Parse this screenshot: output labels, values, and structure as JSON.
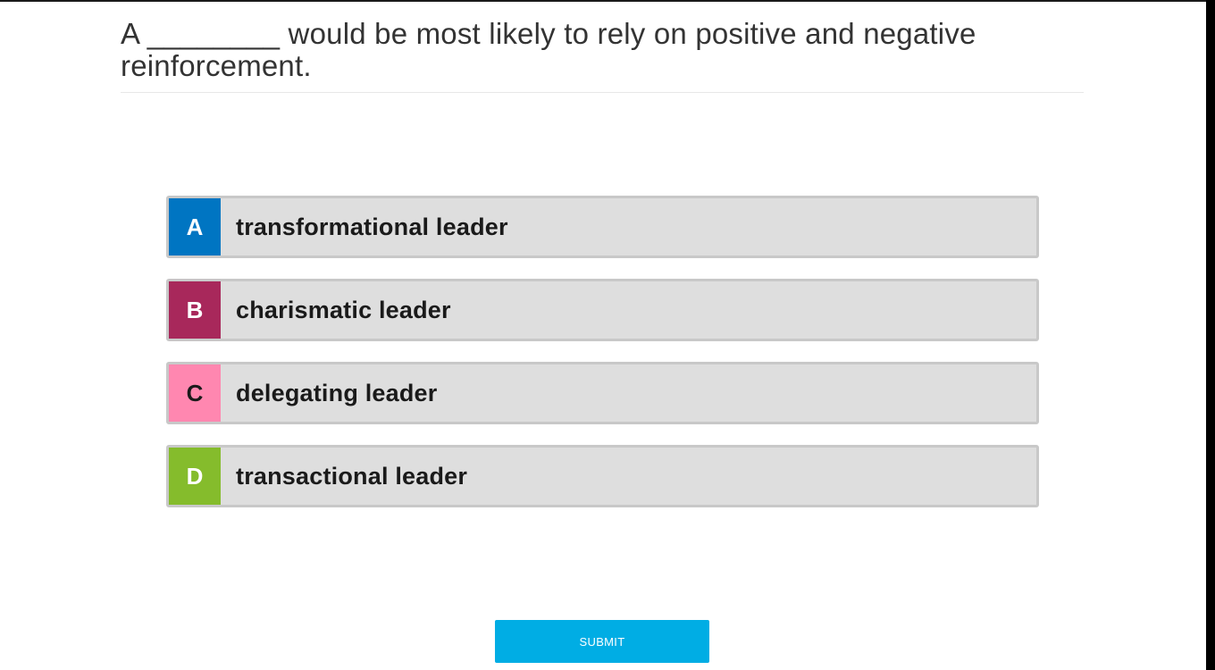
{
  "question": {
    "text": "A ________ would be most likely to rely on positive and negative reinforcement."
  },
  "options": [
    {
      "letter": "A",
      "label": "transformational leader",
      "color": "#0075c2",
      "letter_color": "#ffffff"
    },
    {
      "letter": "B",
      "label": "charismatic leader",
      "color": "#a8285b",
      "letter_color": "#ffffff"
    },
    {
      "letter": "C",
      "label": "delegating leader",
      "color": "#ff87b0",
      "letter_color": "#1a1a1a"
    },
    {
      "letter": "D",
      "label": "transactional leader",
      "color": "#85bc2c",
      "letter_color": "#ffffff"
    }
  ],
  "submit": {
    "label": "SUBMIT",
    "color": "#00ade4"
  }
}
